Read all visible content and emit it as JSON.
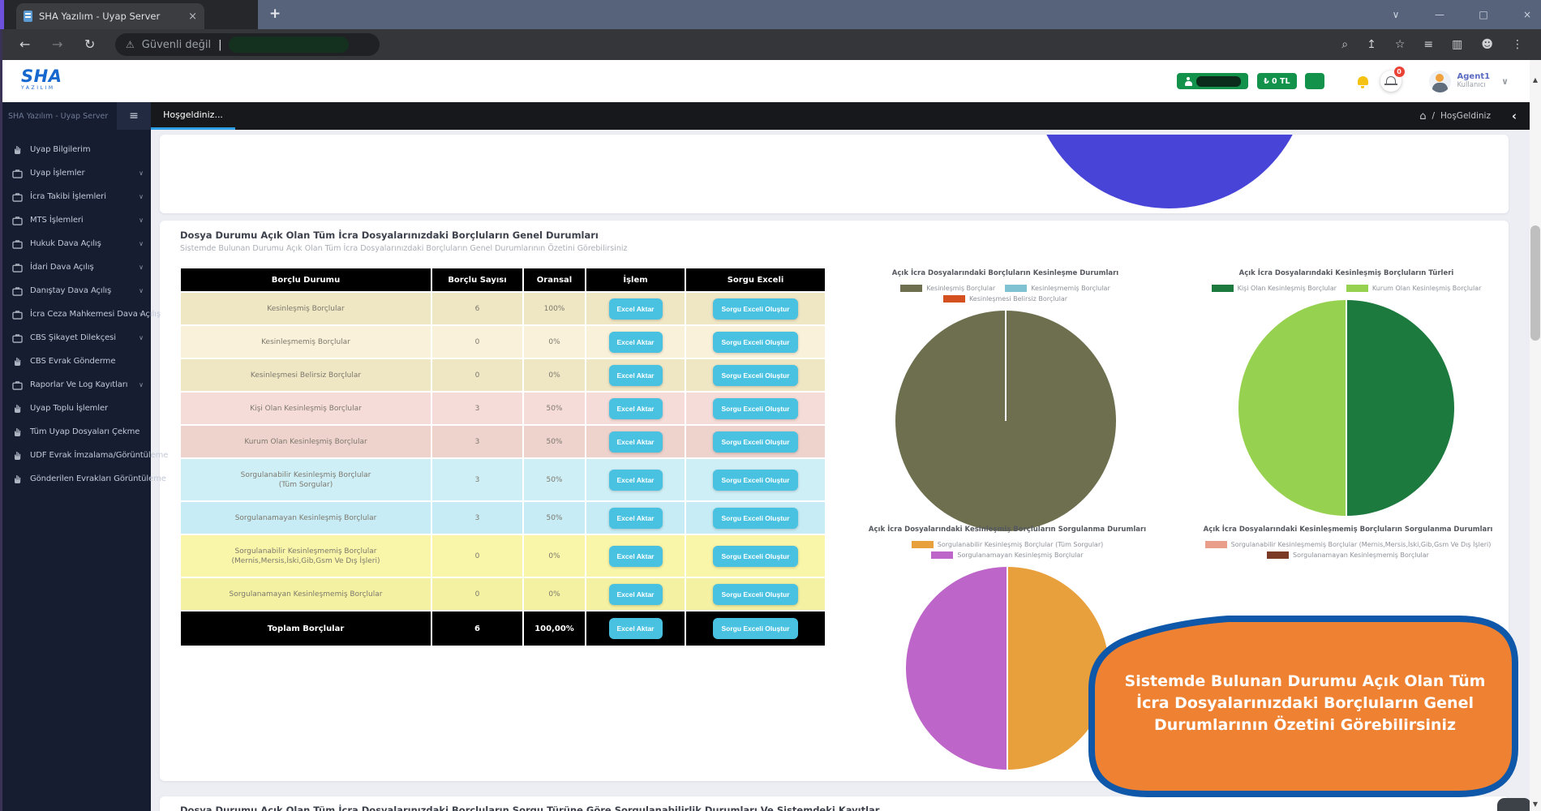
{
  "browser": {
    "tab_title": "SHA Yazılım - Uyap Server",
    "security_label": "Güvenli değil",
    "address_icons": [
      "search",
      "share",
      "star",
      "reading-list",
      "panels",
      "profile",
      "menu-dots"
    ],
    "window_controls": [
      "chevron-down",
      "minimize",
      "maximize",
      "close"
    ]
  },
  "icons": {
    "back": "←",
    "forward": "→",
    "reload": "↻",
    "warning": "⚠",
    "home": "⌂",
    "hamburger": "≡",
    "chevron-down": "∨",
    "chevron-left": "‹",
    "close": "×",
    "new-tab": "+",
    "menu-dots": "⋮",
    "search": "⌕",
    "share": "↥",
    "star": "☆",
    "reading-list": "≡",
    "panels": "▥",
    "profile": "☻",
    "minimize": "—",
    "maximize": "□",
    "scroll-up": "▲",
    "scroll-down": "▼",
    "caret": "|"
  },
  "header": {
    "logo_text": "SHA",
    "logo_sub": "YAZILIM",
    "balance_label": "₺ 0 TL",
    "notification_count": "0",
    "user_name": "Agent1",
    "user_role": "Kullanıcı"
  },
  "sidebar": {
    "brand": "SHA Yazılım - Uyap Server",
    "items": [
      {
        "label": "Uyap Bilgilerim",
        "icon": "hand",
        "expandable": false
      },
      {
        "label": "Uyap İşlemler",
        "icon": "briefcase",
        "expandable": true
      },
      {
        "label": "İcra Takibi İşlemleri",
        "icon": "briefcase",
        "expandable": true
      },
      {
        "label": "MTS İşlemleri",
        "icon": "briefcase",
        "expandable": true
      },
      {
        "label": "Hukuk Dava Açılış",
        "icon": "briefcase",
        "expandable": true
      },
      {
        "label": "İdari Dava Açılış",
        "icon": "briefcase",
        "expandable": true
      },
      {
        "label": "Danıştay Dava Açılış",
        "icon": "briefcase",
        "expandable": true
      },
      {
        "label": "İcra Ceza Mahkemesi Dava Açılış",
        "icon": "briefcase",
        "expandable": true
      },
      {
        "label": "CBS Şikayet Dilekçesi",
        "icon": "briefcase",
        "expandable": true
      },
      {
        "label": "CBS Evrak Gönderme",
        "icon": "hand",
        "expandable": false
      },
      {
        "label": "Raporlar Ve Log Kayıtları",
        "icon": "briefcase",
        "expandable": true
      },
      {
        "label": "Uyap Toplu İşlemler",
        "icon": "hand",
        "expandable": false
      },
      {
        "label": "Tüm Uyap Dosyaları Çekme",
        "icon": "hand",
        "expandable": false
      },
      {
        "label": "UDF Evrak İmzalama/Görüntüleme",
        "icon": "hand",
        "expandable": false
      },
      {
        "label": "Gönderilen Evrakları Görüntüleme",
        "icon": "hand",
        "expandable": false
      }
    ]
  },
  "tabstrip": {
    "active_tab": "Hoşgeldiniz...",
    "breadcrumb": "HoşGeldiniz"
  },
  "section": {
    "title": "Dosya Durumu Açık Olan Tüm İcra Dosyalarınızdaki Borçluların Genel Durumları",
    "subtitle": "Sistemde Bulunan Durumu Açık Olan Tüm İcra Dosyalarınızdaki Borçluların Genel Durumlarının Özetini Görebilirsiniz"
  },
  "table": {
    "columns": [
      "Borçlu Durumu",
      "Borçlu Sayısı",
      "Oransal",
      "İşlem",
      "Sorgu Exceli"
    ],
    "action_label": "Excel Aktar",
    "query_label": "Sorgu Exceli Oluştur",
    "rows": [
      {
        "label": "Kesinleşmiş Borçlular",
        "count": "6",
        "pct": "100%",
        "color": "#efe6c4"
      },
      {
        "label": "Kesinleşmemiş Borçlular",
        "count": "0",
        "pct": "0%",
        "color": "#f9f1d9"
      },
      {
        "label": "Kesinleşmesi Belirsiz Borçlular",
        "count": "0",
        "pct": "0%",
        "color": "#efe6c4"
      },
      {
        "label": "Kişi Olan Kesinleşmiş Borçlular",
        "count": "3",
        "pct": "50%",
        "color": "#f6dcd8"
      },
      {
        "label": "Kurum Olan Kesinleşmiş Borçlular",
        "count": "3",
        "pct": "50%",
        "color": "#eed2cc"
      },
      {
        "label": "Sorgulanabilir Kesinleşmiş Borçlular",
        "sublabel": "(Tüm Sorgular)",
        "count": "3",
        "pct": "50%",
        "color": "#cfeff7"
      },
      {
        "label": "Sorgulanamayan Kesinleşmiş Borçlular",
        "count": "3",
        "pct": "50%",
        "color": "#c7ecf5"
      },
      {
        "label": "Sorgulanabilir Kesinleşmemiş Borçlular",
        "sublabel": "(Mernis,Mersis,İski,Gib,Gsm Ve Dış İşleri)",
        "count": "0",
        "pct": "0%",
        "color": "#f9f6a9"
      },
      {
        "label": "Sorgulanamayan Kesinleşmemiş Borçlular",
        "count": "0",
        "pct": "0%",
        "color": "#f4f1a2"
      }
    ],
    "total": {
      "label": "Toplam Borçlular",
      "count": "6",
      "pct": "100,00%"
    }
  },
  "chart_data": [
    {
      "type": "pie",
      "title": "",
      "labels": [],
      "values": [
        100
      ],
      "colors": [
        "#4844d8"
      ],
      "note_visible": "only bottom half visible at top of scrolled page"
    },
    {
      "type": "pie",
      "title": "Açık İcra Dosyalarındaki Borçluların Kesinleşme Durumları",
      "labels": [
        "Kesinleşmiş Borçlular",
        "Kesinleşmemiş Borçlular",
        "Kesinleşmesi Belirsiz Borçlular"
      ],
      "values": [
        6,
        0,
        0
      ],
      "colors": [
        "#6d6f4e",
        "#7fc3d3",
        "#d4501e"
      ],
      "legend_position": "top"
    },
    {
      "type": "pie",
      "title": "Açık İcra Dosyalarındaki Kesinleşmiş Borçluların Türleri",
      "labels": [
        "Kişi Olan Kesinleşmiş Borçlular",
        "Kurum Olan Kesinleşmiş Borçlular"
      ],
      "values": [
        3,
        3
      ],
      "colors": [
        "#1d7a3f",
        "#97d150"
      ],
      "legend_position": "top"
    },
    {
      "type": "pie",
      "title": "Açık İcra Dosyalarındaki Kesinleşmiş Borçluların Sorgulanma Durumları",
      "labels": [
        "Sorgulanabilir Kesinleşmiş Borçlular (Tüm Sorgular)",
        "Sorgulanamayan Kesinleşmiş Borçlular"
      ],
      "values": [
        3,
        3
      ],
      "colors": [
        "#e8a03c",
        "#bd65c9"
      ],
      "legend_position": "top"
    },
    {
      "type": "pie",
      "title": "Açık İcra Dosyalarındaki Kesinleşmemiş Borçluların Sorgulanma Durumları",
      "labels": [
        "Sorgulanabilir Kesinleşmemiş Borçlular (Mernis,Mersis,İski,Gib,Gsm Ve Dış İşleri)",
        "Sorgulanamayan Kesinleşmemiş Borçlular"
      ],
      "values": [
        0,
        0
      ],
      "colors": [
        "#e99d8b",
        "#7b3a26"
      ],
      "legend_position": "top"
    }
  ],
  "tooltip": {
    "text": "Sistemde Bulunan Durumu Açık Olan Tüm İcra Dosyalarınızdaki Borçluların Genel Durumlarının Özetini Görebilirsiniz"
  },
  "bottom_section": {
    "title": "Dosya Durumu Açık Olan Tüm İcra Dosyalarınızdaki Borçluların Sorgu Türüne Göre Sorgulanabilirlik Durumları Ve Sistemdeki Kayıtlar"
  }
}
